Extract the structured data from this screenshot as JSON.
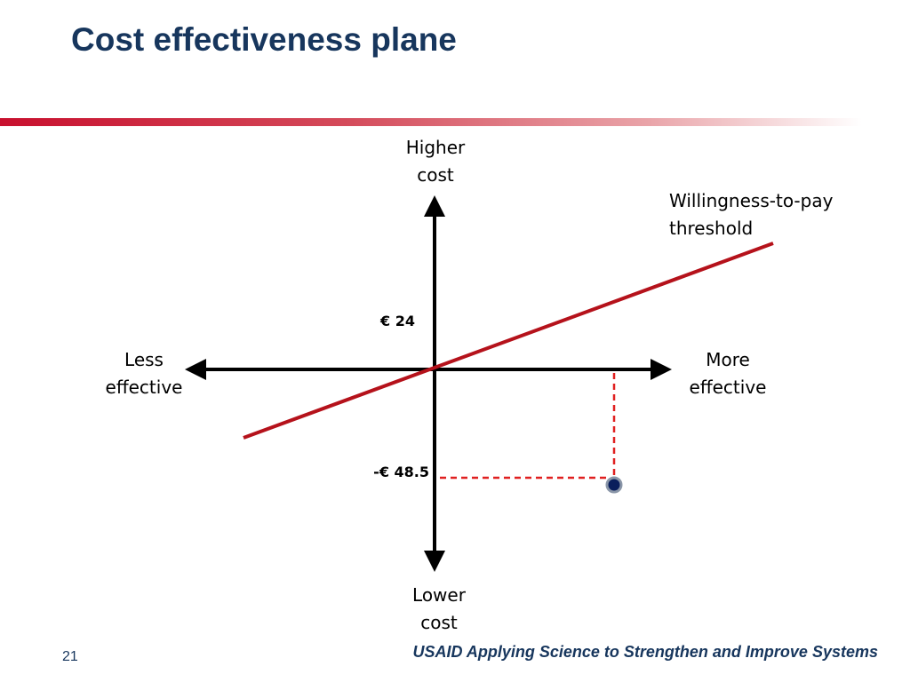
{
  "slide": {
    "title": "Cost effectiveness plane",
    "page_number": "21",
    "footer": "USAID Applying Science to Strengthen and Improve Systems"
  },
  "diagram": {
    "axis_top": [
      "Higher",
      "cost"
    ],
    "axis_bottom": [
      "Lower",
      "cost"
    ],
    "axis_left": [
      "Less",
      "effective"
    ],
    "axis_right": [
      "More",
      "effective"
    ],
    "threshold_label": [
      "Willingness-to-pay",
      "threshold"
    ],
    "threshold_value": "€ 24",
    "point_cost_value": "-€ 48.5",
    "threshold_color": "#b5121b",
    "guide_color": "#e02020",
    "point_color": "#0a1f5c"
  }
}
